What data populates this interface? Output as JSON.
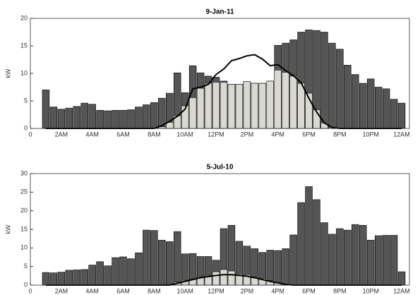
{
  "chart_data": [
    {
      "type": "bar",
      "title": "9-Jan-11",
      "ylabel": "kW",
      "x": [
        1,
        1.5,
        2,
        2.5,
        3,
        3.5,
        4,
        4.5,
        5,
        5.5,
        6,
        6.5,
        7,
        7.5,
        8,
        8.5,
        9,
        9.5,
        10,
        10.5,
        11,
        11.5,
        12,
        12.5,
        13,
        13.5,
        14,
        14.5,
        15,
        15.5,
        16,
        16.5,
        17,
        17.5,
        18,
        18.5,
        19,
        19.5,
        20,
        20.5,
        21,
        21.5,
        22,
        22.5,
        23,
        23.5,
        24
      ],
      "series": [
        {
          "mark": "bar",
          "color": "#555555",
          "values": [
            7,
            3.9,
            3.5,
            3.7,
            4.0,
            4.6,
            4.4,
            3.3,
            3.2,
            3.3,
            3.3,
            3.4,
            3.9,
            4.3,
            4.7,
            5.5,
            6.4,
            10.1,
            6.5,
            11.4,
            10.1,
            9.5,
            9.3,
            8.6,
            8.0,
            8.0,
            8.5,
            8.2,
            8.2,
            8.6,
            15.1,
            15.5,
            16.1,
            17.5,
            17.9,
            17.8,
            17.5,
            15.5,
            14.4,
            11.5,
            9.8,
            8.2,
            9.0,
            7.5,
            7.2,
            5.3,
            4.6
          ]
        },
        {
          "mark": "bar",
          "color": "#d9d9d2",
          "values": [
            0,
            0,
            0,
            0,
            0,
            0,
            0,
            0,
            0,
            0,
            0,
            0,
            0,
            0,
            0,
            0.3,
            1.1,
            2.3,
            4.1,
            5.6,
            7.3,
            8.2,
            8.4,
            8.4,
            8.0,
            8.0,
            8.5,
            8.2,
            8.2,
            8.6,
            10.6,
            10.2,
            9.5,
            8.2,
            6.4,
            3.4,
            1.0,
            0.2,
            0,
            0,
            0,
            0,
            0,
            0,
            0,
            0,
            0
          ]
        },
        {
          "mark": "line",
          "color": "#000000",
          "values": [
            0,
            0,
            0,
            0,
            0,
            0,
            0,
            0,
            0,
            0,
            0,
            0,
            0,
            0,
            0,
            0.5,
            1.3,
            2.2,
            3.5,
            7.2,
            7.5,
            8.0,
            9.8,
            10.8,
            12.3,
            12.7,
            13.2,
            13.4,
            12.6,
            11.4,
            11.6,
            10.5,
            9.6,
            8.3,
            5.5,
            3.0,
            1.0,
            0.2,
            0,
            0,
            0,
            0,
            0,
            0,
            0,
            0,
            0
          ]
        }
      ],
      "xlim": [
        0,
        24.5
      ],
      "xticks": [
        0,
        {
          "value": 2,
          "label": "2AM"
        },
        {
          "value": 4,
          "label": "4AM"
        },
        {
          "value": 6,
          "label": "6AM"
        },
        {
          "value": 8,
          "label": "8AM"
        },
        {
          "value": 10,
          "label": "10AM"
        },
        {
          "value": 12,
          "label": "12PM"
        },
        {
          "value": 14,
          "label": "2PM"
        },
        {
          "value": 16,
          "label": "4PM"
        },
        {
          "value": 18,
          "label": "6PM"
        },
        {
          "value": 20,
          "label": "8PM"
        },
        {
          "value": 22,
          "label": "10PM"
        },
        {
          "value": 24,
          "label": "12AM"
        }
      ],
      "ylim": [
        0,
        20
      ],
      "yticks": [
        0,
        5,
        10,
        15,
        20
      ]
    },
    {
      "type": "bar",
      "title": "5-Jul-10",
      "ylabel": "kW",
      "x": [
        1,
        1.5,
        2,
        2.5,
        3,
        3.5,
        4,
        4.5,
        5,
        5.5,
        6,
        6.5,
        7,
        7.5,
        8,
        8.5,
        9,
        9.5,
        10,
        10.5,
        11,
        11.5,
        12,
        12.5,
        13,
        13.5,
        14,
        14.5,
        15,
        15.5,
        16,
        16.5,
        17,
        17.5,
        18,
        18.5,
        19,
        19.5,
        20,
        20.5,
        21,
        21.5,
        22,
        22.5,
        23,
        23.5,
        24
      ],
      "series": [
        {
          "mark": "bar",
          "color": "#555555",
          "values": [
            3.4,
            3.3,
            3.5,
            4.0,
            4.1,
            4.2,
            5.4,
            6.3,
            5.2,
            7.4,
            7.6,
            7.1,
            8.7,
            14.8,
            14.7,
            12.1,
            11.7,
            14.4,
            8.4,
            8.5,
            7.7,
            7.7,
            6.7,
            15.2,
            16.1,
            11.8,
            10.5,
            9.8,
            8.8,
            9.4,
            9.3,
            9.8,
            13.5,
            22.2,
            26.5,
            23.0,
            16.8,
            13.7,
            15.2,
            14.8,
            16.3,
            16.1,
            12.1,
            13.3,
            13.4,
            13.4,
            3.6
          ]
        },
        {
          "mark": "bar",
          "color": "#d9d9d2",
          "values": [
            0,
            0,
            0,
            0,
            0,
            0,
            0,
            0,
            0,
            0,
            0,
            0,
            0,
            0,
            0,
            0,
            0.3,
            0.8,
            1.3,
            1.6,
            2.2,
            2.6,
            3.6,
            4.2,
            3.8,
            3.0,
            2.8,
            2.2,
            1.8,
            1.2,
            0.6,
            0.3,
            0,
            0,
            0,
            0,
            0,
            0,
            0,
            0,
            0,
            0,
            0,
            0,
            0,
            0,
            0
          ]
        },
        {
          "mark": "line",
          "color": "#000000",
          "values": [
            0,
            0,
            0,
            0,
            0,
            0,
            0,
            0,
            0,
            0,
            0,
            0,
            0,
            0,
            0,
            0,
            0,
            0.5,
            1.0,
            1.5,
            2.0,
            2.3,
            2.6,
            2.8,
            2.8,
            2.6,
            2.4,
            2.0,
            1.5,
            1.0,
            0.6,
            0.2,
            0,
            0,
            0,
            0,
            0,
            0,
            0,
            0,
            0,
            0,
            0,
            0,
            0,
            0,
            0
          ]
        }
      ],
      "xlim": [
        0,
        24.5
      ],
      "xticks": [
        0,
        {
          "value": 2,
          "label": "2AM"
        },
        {
          "value": 4,
          "label": "4AM"
        },
        {
          "value": 6,
          "label": "6AM"
        },
        {
          "value": 8,
          "label": "8AM"
        },
        {
          "value": 10,
          "label": "10AM"
        },
        {
          "value": 12,
          "label": "12PM"
        },
        {
          "value": 14,
          "label": "2PM"
        },
        {
          "value": 16,
          "label": "4PM"
        },
        {
          "value": 18,
          "label": "6PM"
        },
        {
          "value": 20,
          "label": "8PM"
        },
        {
          "value": 22,
          "label": "10PM"
        },
        {
          "value": 24,
          "label": "12AM"
        }
      ],
      "ylim": [
        0,
        30
      ],
      "yticks": [
        0,
        5,
        10,
        15,
        20,
        25,
        30
      ]
    }
  ]
}
